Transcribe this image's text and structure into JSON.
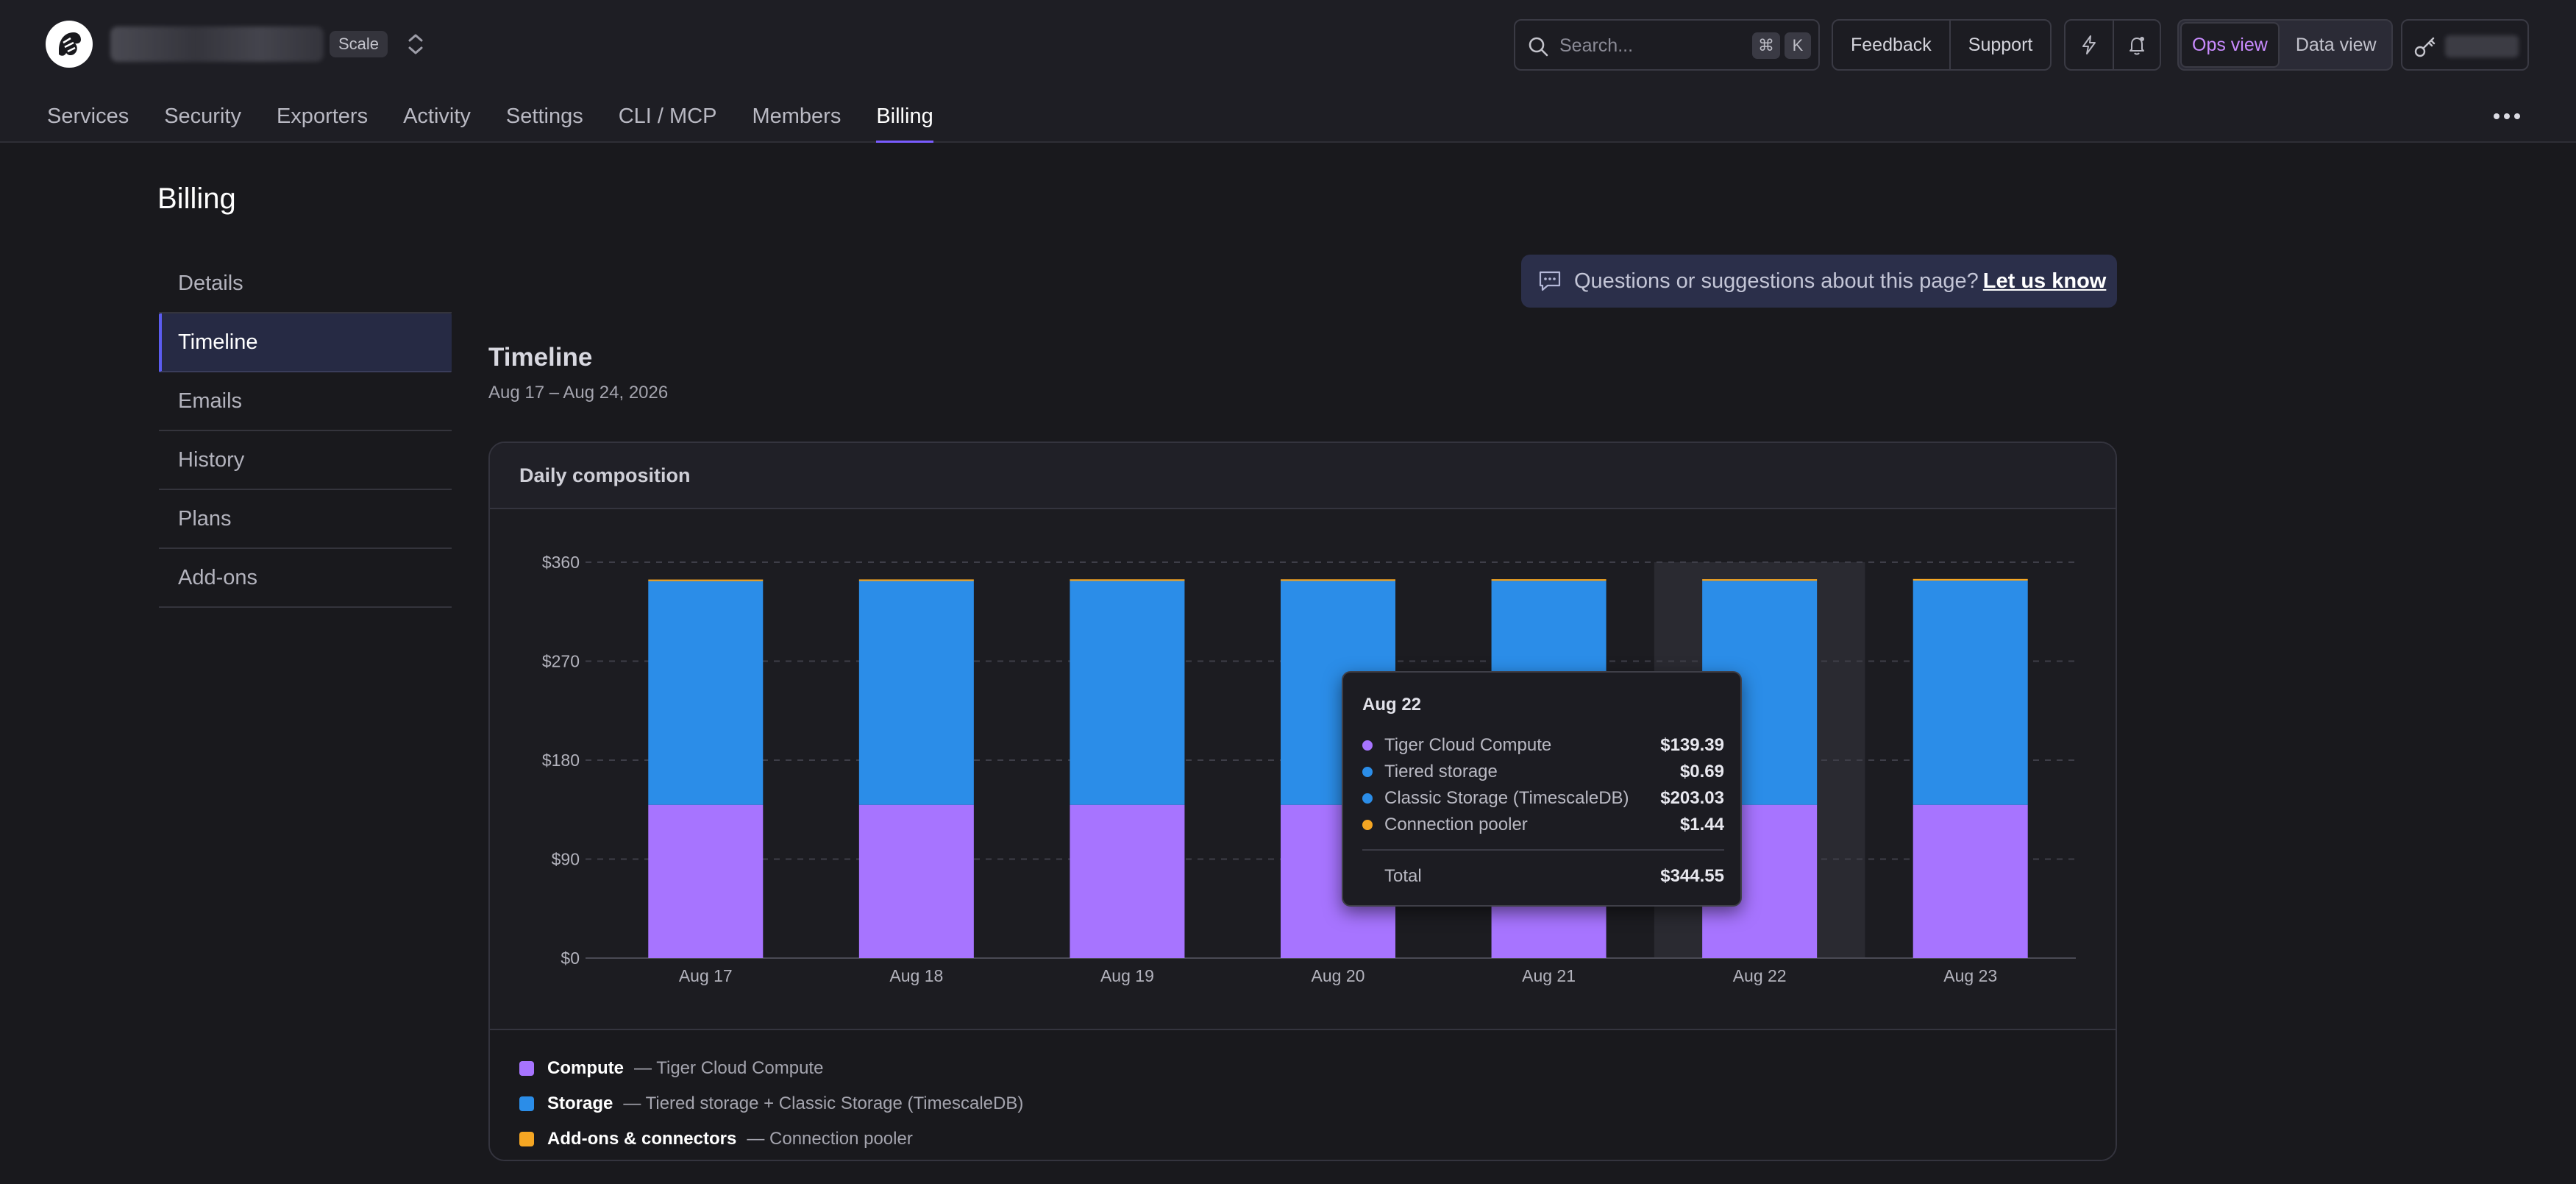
{
  "header": {
    "plan_badge": "Scale",
    "search_placeholder": "Search...",
    "shortcut_cmd": "⌘",
    "shortcut_key": "K",
    "feedback": "Feedback",
    "support": "Support",
    "ops_view": "Ops view",
    "data_view": "Data view"
  },
  "nav": {
    "tabs": [
      "Services",
      "Security",
      "Exporters",
      "Activity",
      "Settings",
      "CLI / MCP",
      "Members",
      "Billing"
    ],
    "active": "Billing"
  },
  "page": {
    "title": "Billing",
    "sidebar": [
      "Details",
      "Timeline",
      "Emails",
      "History",
      "Plans",
      "Add-ons"
    ],
    "sidebar_active": "Timeline",
    "feedback_text": "Questions or suggestions about this page?",
    "feedback_link": "Let us know",
    "section_title": "Timeline",
    "date_range": "Aug 17 – Aug 24, 2026",
    "card_title": "Daily composition"
  },
  "colors": {
    "compute": "#a774ff",
    "storage": "#2b8de8",
    "addons": "#f5a623",
    "accent": "#7a5cff"
  },
  "chart_data": {
    "type": "bar",
    "stacked": true,
    "categories": [
      "Aug 17",
      "Aug 18",
      "Aug 19",
      "Aug 20",
      "Aug 21",
      "Aug 22",
      "Aug 23"
    ],
    "series": [
      {
        "name": "Compute",
        "values": [
          139.39,
          139.39,
          139.39,
          139.39,
          139.39,
          139.39,
          139.39
        ]
      },
      {
        "name": "Storage",
        "values": [
          203.4,
          203.5,
          203.6,
          203.6,
          203.7,
          203.72,
          203.9
        ]
      },
      {
        "name": "Add-ons & connectors",
        "values": [
          1.44,
          1.44,
          1.44,
          1.44,
          1.44,
          1.44,
          1.44
        ]
      }
    ],
    "y_ticks": [
      "$0",
      "$90",
      "$180",
      "$270",
      "$360"
    ],
    "ylim": [
      0,
      360
    ],
    "grid": true,
    "highlighted_category": "Aug 22"
  },
  "legend": [
    {
      "name": "Compute",
      "desc": "— Tiger Cloud Compute",
      "color": "#a774ff"
    },
    {
      "name": "Storage",
      "desc": "— Tiered storage + Classic Storage (TimescaleDB)",
      "color": "#2b8de8"
    },
    {
      "name": "Add-ons & connectors",
      "desc": "— Connection pooler",
      "color": "#f5a623"
    }
  ],
  "tooltip": {
    "title": "Aug 22",
    "rows": [
      {
        "name": "Tiger Cloud Compute",
        "value": "$139.39",
        "color": "#a774ff"
      },
      {
        "name": "Tiered storage",
        "value": "$0.69",
        "color": "#2b8de8"
      },
      {
        "name": "Classic Storage (TimescaleDB)",
        "value": "$203.03",
        "color": "#2b8de8"
      },
      {
        "name": "Connection pooler",
        "value": "$1.44",
        "color": "#f5a623"
      }
    ],
    "total_label": "Total",
    "total_value": "$344.55"
  }
}
